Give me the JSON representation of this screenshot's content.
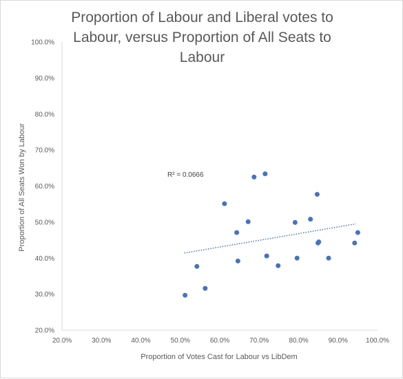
{
  "chart_data": {
    "type": "scatter",
    "title_lines": [
      "Proportion of Labour and Liberal votes to",
      "Labour, versus Proportion of All Seats to",
      "Labour"
    ],
    "xlabel": "Proportion of Votes Cast for Labour vs LibDem",
    "ylabel": "Proportion of All Seats Won by Labour",
    "xlim": [
      0.2,
      1.0
    ],
    "ylim": [
      0.2,
      1.0
    ],
    "xticks": [
      0.2,
      0.3,
      0.4,
      0.5,
      0.6,
      0.7,
      0.8,
      0.9,
      1.0
    ],
    "yticks": [
      0.2,
      0.3,
      0.4,
      0.5,
      0.6,
      0.7,
      0.8,
      0.9,
      1.0
    ],
    "xtick_labels": [
      "20.0%",
      "30.0%",
      "40.0%",
      "50.0%",
      "60.0%",
      "70.0%",
      "80.0%",
      "90.0%",
      "100.0%"
    ],
    "ytick_labels": [
      "20.0%",
      "30.0%",
      "40.0%",
      "50.0%",
      "60.0%",
      "70.0%",
      "80.0%",
      "90.0%",
      "100.0%"
    ],
    "grid": false,
    "marker_color": "#4472c4",
    "trendline": {
      "type": "linear",
      "style": "dotted",
      "color": "#4472c4",
      "x_range": [
        0.51,
        0.945
      ],
      "y_range": [
        0.414,
        0.495
      ],
      "r_squared_label": "R² = 0.0666"
    },
    "points": [
      {
        "x": 0.512,
        "y": 0.297
      },
      {
        "x": 0.542,
        "y": 0.377
      },
      {
        "x": 0.563,
        "y": 0.316
      },
      {
        "x": 0.612,
        "y": 0.551
      },
      {
        "x": 0.643,
        "y": 0.471
      },
      {
        "x": 0.646,
        "y": 0.392
      },
      {
        "x": 0.672,
        "y": 0.501
      },
      {
        "x": 0.687,
        "y": 0.625
      },
      {
        "x": 0.715,
        "y": 0.634
      },
      {
        "x": 0.719,
        "y": 0.406
      },
      {
        "x": 0.748,
        "y": 0.379
      },
      {
        "x": 0.791,
        "y": 0.499
      },
      {
        "x": 0.796,
        "y": 0.4
      },
      {
        "x": 0.83,
        "y": 0.508
      },
      {
        "x": 0.847,
        "y": 0.577
      },
      {
        "x": 0.849,
        "y": 0.442
      },
      {
        "x": 0.851,
        "y": 0.445
      },
      {
        "x": 0.876,
        "y": 0.4
      },
      {
        "x": 0.942,
        "y": 0.442
      },
      {
        "x": 0.95,
        "y": 0.471
      }
    ]
  }
}
